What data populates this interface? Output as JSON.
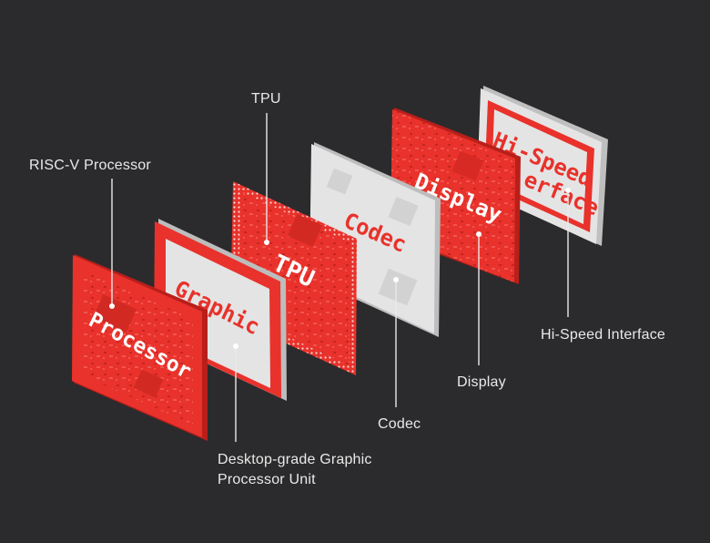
{
  "chips": {
    "processor": "Processor",
    "graphic": "Graphic",
    "tpu": "TPU",
    "codec": "Codec",
    "display": "Display",
    "hispeed_line1": "Hi-Speed",
    "hispeed_line2": "erface"
  },
  "labels": {
    "risc_v": "RISC-V Processor",
    "tpu": "TPU",
    "graphic_line1": "Desktop-grade Graphic",
    "graphic_line2": "Processor Unit",
    "codec": "Codec",
    "display": "Display",
    "hi_speed": "Hi-Speed Interface"
  },
  "colors": {
    "background": "#2b2b2d",
    "chip_red": "#e8322b",
    "chip_white": "#e4e4e4",
    "leader": "#e9e9e9"
  }
}
